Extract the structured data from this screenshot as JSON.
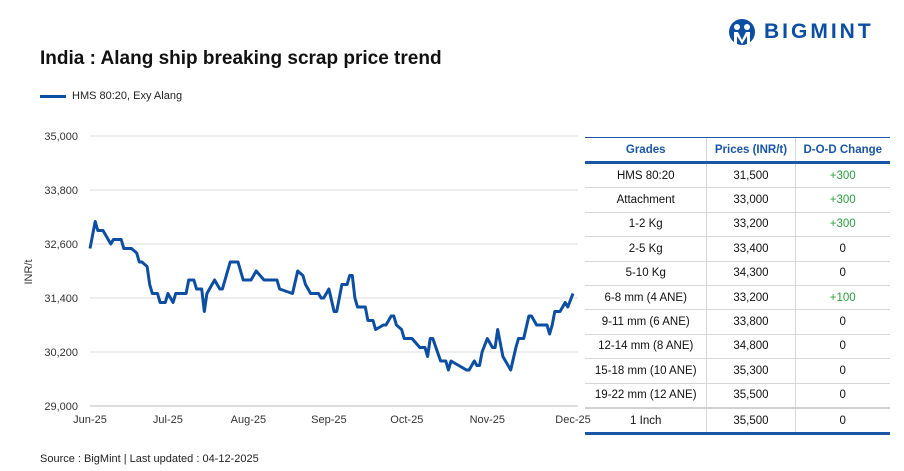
{
  "title": "India : Alang ship breaking scrap price trend",
  "brand": {
    "name": "BIGMINT",
    "color": "#0b4ea2"
  },
  "source": "Source : BigMint | Last updated : 04-12-2025",
  "chart_data": {
    "type": "line",
    "title": "India : Alang ship breaking scrap price trend",
    "ylabel": "INR/t",
    "xlabel": "",
    "ylim": [
      29000,
      35000
    ],
    "yticks": [
      "29,000",
      "30,200",
      "31,400",
      "32,600",
      "33,800",
      "35,000"
    ],
    "ytick_values": [
      29000,
      30200,
      31400,
      32600,
      33800,
      35000
    ],
    "xticks": [
      "Jun-25",
      "Jul-25",
      "Aug-25",
      "Sep-25",
      "Oct-25",
      "Nov-25",
      "Dec-25"
    ],
    "xtick_dates": [
      "2025-06-01",
      "2025-07-01",
      "2025-08-01",
      "2025-09-01",
      "2025-10-01",
      "2025-11-01",
      "2025-12-04"
    ],
    "xlim": [
      "2025-06-01",
      "2025-12-04"
    ],
    "grid": "horizontal",
    "legend": "top-left",
    "series": [
      {
        "name": "HMS 80:20, Exy Alang",
        "color": "#0b4ea2",
        "points": [
          [
            "2025-06-01",
            32500
          ],
          [
            "2025-06-03",
            33100
          ],
          [
            "2025-06-04",
            32900
          ],
          [
            "2025-06-06",
            32900
          ],
          [
            "2025-06-09",
            32600
          ],
          [
            "2025-06-10",
            32700
          ],
          [
            "2025-06-13",
            32700
          ],
          [
            "2025-06-14",
            32500
          ],
          [
            "2025-06-17",
            32500
          ],
          [
            "2025-06-19",
            32400
          ],
          [
            "2025-06-20",
            32200
          ],
          [
            "2025-06-21",
            32200
          ],
          [
            "2025-06-23",
            32100
          ],
          [
            "2025-06-24",
            31700
          ],
          [
            "2025-06-25",
            31500
          ],
          [
            "2025-06-27",
            31500
          ],
          [
            "2025-06-28",
            31300
          ],
          [
            "2025-06-30",
            31300
          ],
          [
            "2025-07-01",
            31500
          ],
          [
            "2025-07-03",
            31300
          ],
          [
            "2025-07-04",
            31500
          ],
          [
            "2025-07-08",
            31500
          ],
          [
            "2025-07-09",
            31800
          ],
          [
            "2025-07-11",
            31800
          ],
          [
            "2025-07-12",
            31600
          ],
          [
            "2025-07-14",
            31600
          ],
          [
            "2025-07-15",
            31100
          ],
          [
            "2025-07-16",
            31500
          ],
          [
            "2025-07-19",
            31800
          ],
          [
            "2025-07-21",
            31600
          ],
          [
            "2025-07-22",
            31600
          ],
          [
            "2025-07-25",
            32200
          ],
          [
            "2025-07-28",
            32200
          ],
          [
            "2025-07-30",
            31800
          ],
          [
            "2025-08-02",
            31800
          ],
          [
            "2025-08-04",
            32000
          ],
          [
            "2025-08-07",
            31800
          ],
          [
            "2025-08-12",
            31800
          ],
          [
            "2025-08-13",
            31600
          ],
          [
            "2025-08-18",
            31500
          ],
          [
            "2025-08-20",
            32000
          ],
          [
            "2025-08-22",
            31900
          ],
          [
            "2025-08-23",
            31700
          ],
          [
            "2025-08-25",
            31500
          ],
          [
            "2025-08-28",
            31500
          ],
          [
            "2025-08-29",
            31400
          ],
          [
            "2025-08-30",
            31400
          ],
          [
            "2025-09-01",
            31600
          ],
          [
            "2025-09-03",
            31100
          ],
          [
            "2025-09-04",
            31100
          ],
          [
            "2025-09-06",
            31700
          ],
          [
            "2025-09-08",
            31700
          ],
          [
            "2025-09-09",
            31900
          ],
          [
            "2025-09-10",
            31900
          ],
          [
            "2025-09-11",
            31400
          ],
          [
            "2025-09-12",
            31200
          ],
          [
            "2025-09-15",
            31200
          ],
          [
            "2025-09-16",
            30900
          ],
          [
            "2025-09-18",
            30900
          ],
          [
            "2025-09-19",
            30700
          ],
          [
            "2025-09-22",
            30800
          ],
          [
            "2025-09-23",
            30800
          ],
          [
            "2025-09-25",
            31000
          ],
          [
            "2025-09-26",
            31000
          ],
          [
            "2025-09-27",
            30800
          ],
          [
            "2025-09-29",
            30700
          ],
          [
            "2025-09-30",
            30500
          ],
          [
            "2025-10-03",
            30500
          ],
          [
            "2025-10-06",
            30300
          ],
          [
            "2025-10-08",
            30300
          ],
          [
            "2025-10-09",
            30100
          ],
          [
            "2025-10-10",
            30500
          ],
          [
            "2025-10-11",
            30500
          ],
          [
            "2025-10-14",
            30000
          ],
          [
            "2025-10-16",
            30000
          ],
          [
            "2025-10-17",
            29800
          ],
          [
            "2025-10-18",
            30000
          ],
          [
            "2025-10-24",
            29800
          ],
          [
            "2025-10-25",
            29800
          ],
          [
            "2025-10-27",
            30000
          ],
          [
            "2025-10-28",
            29900
          ],
          [
            "2025-10-29",
            29900
          ],
          [
            "2025-10-30",
            30200
          ],
          [
            "2025-11-01",
            30500
          ],
          [
            "2025-11-03",
            30300
          ],
          [
            "2025-11-04",
            30300
          ],
          [
            "2025-11-05",
            30700
          ],
          [
            "2025-11-07",
            30100
          ],
          [
            "2025-11-08",
            30000
          ],
          [
            "2025-11-10",
            29800
          ],
          [
            "2025-11-12",
            30300
          ],
          [
            "2025-11-13",
            30500
          ],
          [
            "2025-11-15",
            30500
          ],
          [
            "2025-11-17",
            31000
          ],
          [
            "2025-11-18",
            31000
          ],
          [
            "2025-11-20",
            30800
          ],
          [
            "2025-11-24",
            30800
          ],
          [
            "2025-11-25",
            30600
          ],
          [
            "2025-11-26",
            30800
          ],
          [
            "2025-11-27",
            31100
          ],
          [
            "2025-11-29",
            31100
          ],
          [
            "2025-12-01",
            31300
          ],
          [
            "2025-12-02",
            31200
          ],
          [
            "2025-12-04",
            31500
          ]
        ]
      }
    ]
  },
  "table": {
    "headers": [
      "Grades",
      "Prices (INR/t)",
      "D-O-D Change"
    ],
    "positive_color": "#2e9e3e",
    "rows": [
      [
        "HMS 80:20",
        "31,500",
        "+300"
      ],
      [
        "Attachment",
        "33,000",
        "+300"
      ],
      [
        "1-2 Kg",
        "33,200",
        "+300"
      ],
      [
        "2-5 Kg",
        "33,400",
        "0"
      ],
      [
        "5-10 Kg",
        "34,300",
        "0"
      ],
      [
        "6-8 mm (4 ANE)",
        "33,200",
        "+100"
      ],
      [
        "9-11 mm (6 ANE)",
        "33,800",
        "0"
      ],
      [
        "12-14 mm (8 ANE)",
        "34,800",
        "0"
      ],
      [
        "15-18 mm (10 ANE)",
        "35,300",
        "0"
      ],
      [
        "19-22 mm (12 ANE)",
        "35,500",
        "0"
      ],
      [
        "1 Inch",
        "35,500",
        "0"
      ]
    ]
  }
}
